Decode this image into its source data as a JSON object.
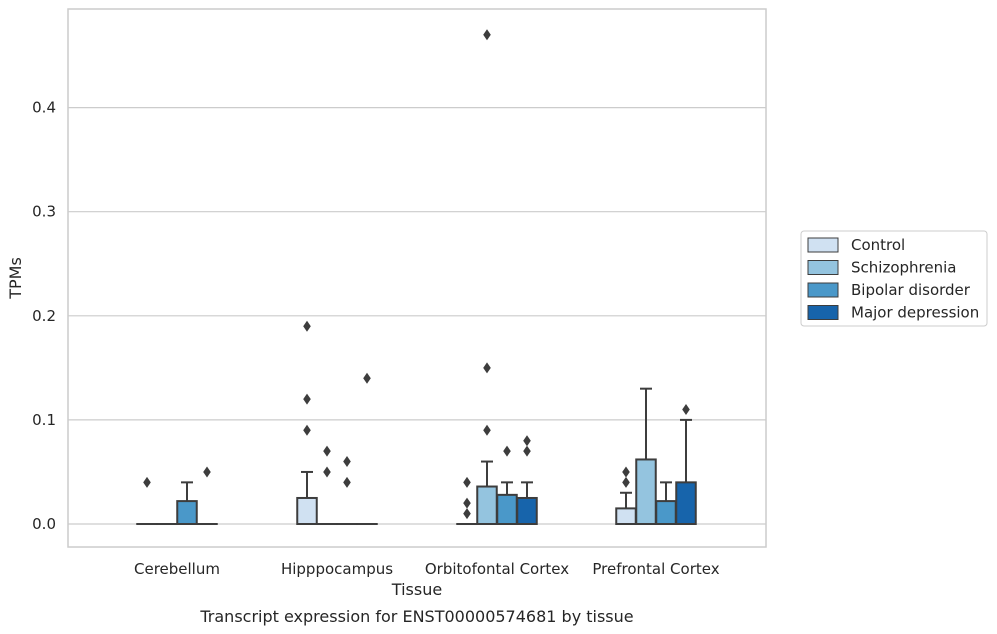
{
  "chart_data": {
    "type": "box",
    "title": "",
    "xlabel": "Tissue",
    "ylabel": "TPMs",
    "caption": "Transcript expression for ENST00000574681 by tissue",
    "categories": [
      "Cerebellum",
      "Hipppocampus",
      "Orbitofontal Cortex",
      "Prefrontal Cortex"
    ],
    "ylim": [
      -0.023,
      0.49
    ],
    "yticks": [
      0.0,
      0.1,
      0.2,
      0.3,
      0.4
    ],
    "ytick_labels": [
      "0.0",
      "0.1",
      "0.2",
      "0.3",
      "0.4"
    ],
    "grid": "horizontal",
    "legend_position": "right",
    "series": [
      {
        "name": "Control",
        "color": "#d0e1f2",
        "boxes": [
          {
            "q1": 0.0,
            "median": 0.0,
            "q3": 0.0,
            "whisker_low": 0.0,
            "whisker_high": 0.0,
            "outliers": [
              0.04
            ]
          },
          {
            "q1": 0.0,
            "median": 0.0,
            "q3": 0.025,
            "whisker_low": 0.0,
            "whisker_high": 0.05,
            "outliers": [
              0.09,
              0.12,
              0.19
            ]
          },
          {
            "q1": 0.0,
            "median": 0.0,
            "q3": 0.0,
            "whisker_low": 0.0,
            "whisker_high": 0.0,
            "outliers": [
              0.01,
              0.02,
              0.04
            ]
          },
          {
            "q1": 0.0,
            "median": 0.0,
            "q3": 0.015,
            "whisker_low": 0.0,
            "whisker_high": 0.03,
            "outliers": [
              0.04,
              0.05
            ]
          }
        ]
      },
      {
        "name": "Schizophrenia",
        "color": "#94c4df",
        "boxes": [
          {
            "q1": 0.0,
            "median": 0.0,
            "q3": 0.0,
            "whisker_low": 0.0,
            "whisker_high": 0.0,
            "outliers": []
          },
          {
            "q1": 0.0,
            "median": 0.0,
            "q3": 0.0,
            "whisker_low": 0.0,
            "whisker_high": 0.0,
            "outliers": [
              0.05,
              0.07
            ]
          },
          {
            "q1": 0.0,
            "median": 0.0,
            "q3": 0.036,
            "whisker_low": 0.0,
            "whisker_high": 0.06,
            "outliers": [
              0.09,
              0.15,
              0.47
            ]
          },
          {
            "q1": 0.0,
            "median": 0.0,
            "q3": 0.062,
            "whisker_low": 0.0,
            "whisker_high": 0.13,
            "outliers": []
          }
        ]
      },
      {
        "name": "Bipolar disorder",
        "color": "#4a98c9",
        "boxes": [
          {
            "q1": 0.0,
            "median": 0.0,
            "q3": 0.022,
            "whisker_low": 0.0,
            "whisker_high": 0.04,
            "outliers": []
          },
          {
            "q1": 0.0,
            "median": 0.0,
            "q3": 0.0,
            "whisker_low": 0.0,
            "whisker_high": 0.0,
            "outliers": [
              0.04,
              0.06
            ]
          },
          {
            "q1": 0.0,
            "median": 0.0,
            "q3": 0.028,
            "whisker_low": 0.0,
            "whisker_high": 0.04,
            "outliers": [
              0.07
            ]
          },
          {
            "q1": 0.0,
            "median": 0.0,
            "q3": 0.022,
            "whisker_low": 0.0,
            "whisker_high": 0.04,
            "outliers": []
          }
        ]
      },
      {
        "name": "Major depression",
        "color": "#1764ab",
        "boxes": [
          {
            "q1": 0.0,
            "median": 0.0,
            "q3": 0.0,
            "whisker_low": 0.0,
            "whisker_high": 0.0,
            "outliers": [
              0.05
            ]
          },
          {
            "q1": 0.0,
            "median": 0.0,
            "q3": 0.0,
            "whisker_low": 0.0,
            "whisker_high": 0.0,
            "outliers": [
              0.14
            ]
          },
          {
            "q1": 0.0,
            "median": 0.0,
            "q3": 0.025,
            "whisker_low": 0.0,
            "whisker_high": 0.04,
            "outliers": [
              0.07,
              0.08
            ]
          },
          {
            "q1": 0.0,
            "median": 0.0,
            "q3": 0.04,
            "whisker_low": 0.0,
            "whisker_high": 0.1,
            "outliers": [
              0.11
            ]
          }
        ]
      }
    ]
  }
}
